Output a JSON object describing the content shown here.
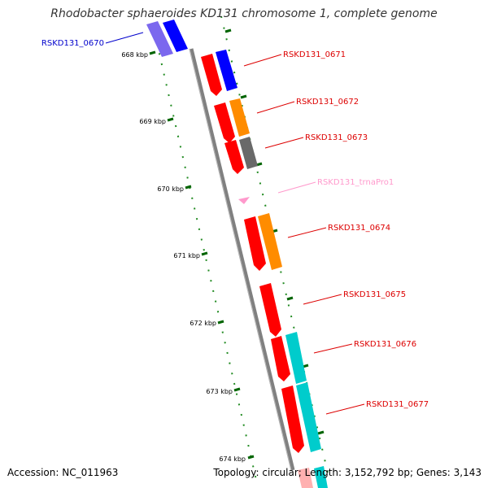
{
  "title": "Rhodobacter sphaeroides KD131 chromosome 1, complete genome",
  "footer": {
    "accession": "Accession: NC_011963",
    "topology": "Topology: circular; Length: 3,152,792 bp; Genes: 3,143"
  },
  "colors": {
    "red": "#ff0000",
    "blue": "#0000ff",
    "violet": "#7b68ee",
    "orange": "#ff8c00",
    "gray": "#696969",
    "cyan": "#00cccc",
    "pink": "#ff99cc",
    "tick_green": "#228b22",
    "backbone": "#808080"
  },
  "kbp_ticks": [
    "668 kbp",
    "669 kbp",
    "670 kbp",
    "671 kbp",
    "672 kbp",
    "673 kbp",
    "674 kbp"
  ],
  "gene_labels": [
    {
      "text": "RSKD131_0670",
      "color": "#0000cc"
    },
    {
      "text": "RSKD131_0671",
      "color": "#dd0000"
    },
    {
      "text": "RSKD131_0672",
      "color": "#dd0000"
    },
    {
      "text": "RSKD131_0673",
      "color": "#dd0000"
    },
    {
      "text": "RSKD131_trnaPro1",
      "color": "#ff99cc"
    },
    {
      "text": "RSKD131_0674",
      "color": "#dd0000"
    },
    {
      "text": "RSKD131_0675",
      "color": "#dd0000"
    },
    {
      "text": "RSKD131_0676",
      "color": "#dd0000"
    },
    {
      "text": "RSKD131_0677",
      "color": "#dd0000"
    }
  ]
}
